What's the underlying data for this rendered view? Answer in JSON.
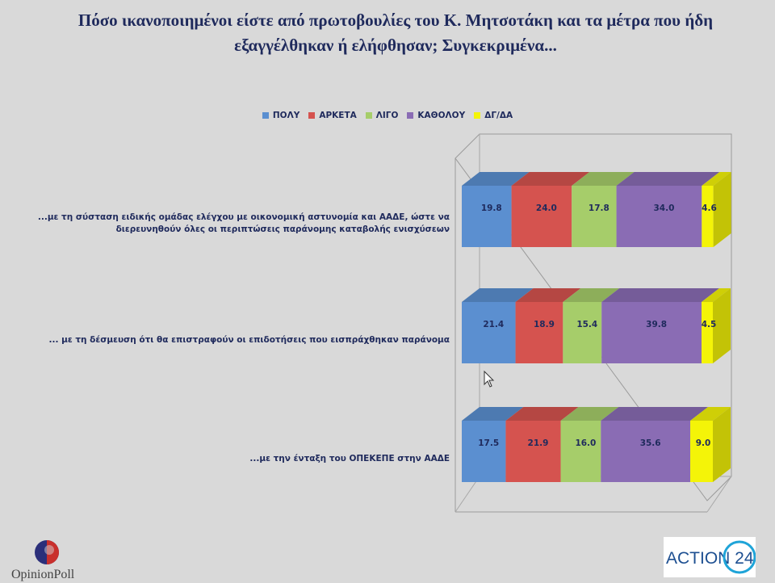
{
  "title": "Πόσο ικανοποιημένοι είστε από πρωτοβουλίες του Κ. Μητσοτάκη και τα μέτρα που ήδη εξαγγέλθηκαν ή ελήφθησαν; Συγκεκριμένα...",
  "legend": [
    {
      "label": "ΠΟΛΥ",
      "color": "#5b8fd0"
    },
    {
      "label": "ΑΡΚΕΤΑ",
      "color": "#d5534f"
    },
    {
      "label": "ΛΙΓΟ",
      "color": "#a6cd6a"
    },
    {
      "label": "ΚΑΘΟΛΟΥ",
      "color": "#8a6cb4"
    },
    {
      "label": "ΔΓ/ΔΑ",
      "color": "#f4f408"
    }
  ],
  "chart_data": {
    "type": "bar",
    "orientation": "horizontal",
    "stacked": true,
    "legend_position": "top",
    "grid": false,
    "xlim": [
      0,
      100
    ],
    "categories": [
      "...με τη σύσταση ειδικής ομάδας ελέγχου με οικονομική αστυνομία και ΑΑΔΕ, ώστε να διερευνηθούν όλες οι περιπτώσεις παράνομης καταβολής ενισχύσεων",
      "... με τη δέσμευση ότι θα επιστραφούν οι επιδοτήσεις που εισπράχθηκαν παράνομα",
      "...με την ένταξη του ΟΠΕΚΕΠΕ στην ΑΑΔΕ"
    ],
    "series": [
      {
        "name": "ΠΟΛΥ",
        "values": [
          19.8,
          21.4,
          17.5
        ],
        "labels": [
          "19.8",
          "21.4",
          "17.5"
        ]
      },
      {
        "name": "ΑΡΚΕΤΑ",
        "values": [
          24.0,
          18.9,
          21.9
        ],
        "labels": [
          "24.0",
          "18.9",
          "21.9"
        ]
      },
      {
        "name": "ΛΙΓΟ",
        "values": [
          17.8,
          15.4,
          16.0
        ],
        "labels": [
          "17.8",
          "15.4",
          "16.0"
        ]
      },
      {
        "name": "ΚΑΘΟΛΟΥ",
        "values": [
          34.0,
          39.8,
          35.6
        ],
        "labels": [
          "34.0",
          "39.8",
          "35.6"
        ]
      },
      {
        "name": "ΔΓ/ΔΑ",
        "values": [
          4.6,
          4.5,
          9.0
        ],
        "labels": [
          "4.6",
          "4.5",
          "9.0"
        ]
      }
    ]
  },
  "logos": {
    "left_text": "OpinionPoll",
    "right_text": "ACTION 24"
  }
}
